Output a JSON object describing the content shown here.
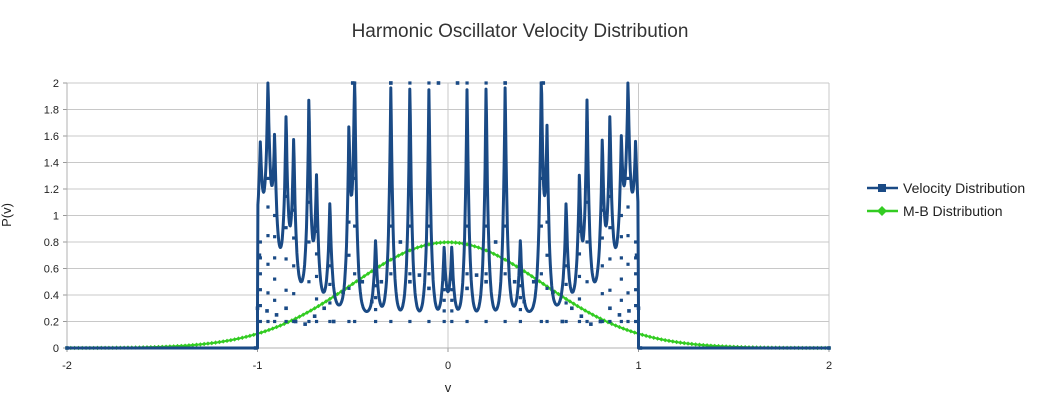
{
  "chart_data": {
    "type": "line",
    "title": "Harmonic Oscillator Velocity Distribution",
    "xlabel": "v",
    "ylabel": "P(v)",
    "xlim": [
      -2,
      2
    ],
    "ylim": [
      0,
      2
    ],
    "x_ticks": [
      "-2",
      "-1",
      "0",
      "1",
      "2"
    ],
    "y_ticks": [
      "0",
      "0.2",
      "0.4",
      "0.6",
      "0.8",
      "1",
      "1.2",
      "1.4",
      "1.6",
      "1.8",
      "2"
    ],
    "grid": true,
    "legend_position": "right",
    "series": [
      {
        "name": "Velocity Distribution",
        "color": "#1a4a85",
        "marker": "square",
        "description_points": {
          "x": [
            -2,
            -1.01,
            -1.0,
            -0.99,
            -0.95,
            -0.9,
            -0.85,
            -0.8,
            -0.75,
            -0.7,
            -0.65,
            -0.6,
            -0.55,
            -0.5,
            -0.45,
            -0.4,
            -0.35,
            -0.3,
            -0.25,
            -0.2,
            -0.15,
            -0.1,
            -0.05,
            0,
            0.05,
            0.1,
            0.15,
            0.2,
            0.25,
            0.3,
            0.35,
            0.4,
            0.45,
            0.5,
            0.55,
            0.6,
            0.65,
            0.7,
            0.75,
            0.8,
            0.85,
            0.9,
            0.95,
            0.99,
            1.0,
            1.01,
            2
          ],
          "y": [
            0,
            0,
            0.3,
            0.7,
            0.28,
            0.25,
            0.3,
            0.2,
            0.18,
            0.24,
            0.3,
            0.2,
            0.42,
            2.0,
            0.5,
            0.35,
            0.5,
            2.0,
            0.8,
            0.5,
            0.55,
            0.45,
            2.0,
            0.45,
            2.0,
            0.45,
            0.55,
            0.5,
            0.8,
            2.0,
            0.5,
            0.35,
            0.5,
            2.0,
            0.42,
            0.2,
            0.3,
            0.24,
            0.18,
            0.2,
            0.3,
            0.25,
            0.28,
            0.7,
            0.3,
            0,
            0
          ]
        }
      },
      {
        "name": "M-B Distribution",
        "color": "#33cc22",
        "marker": "diamond",
        "sigma": 0.5
      }
    ]
  }
}
